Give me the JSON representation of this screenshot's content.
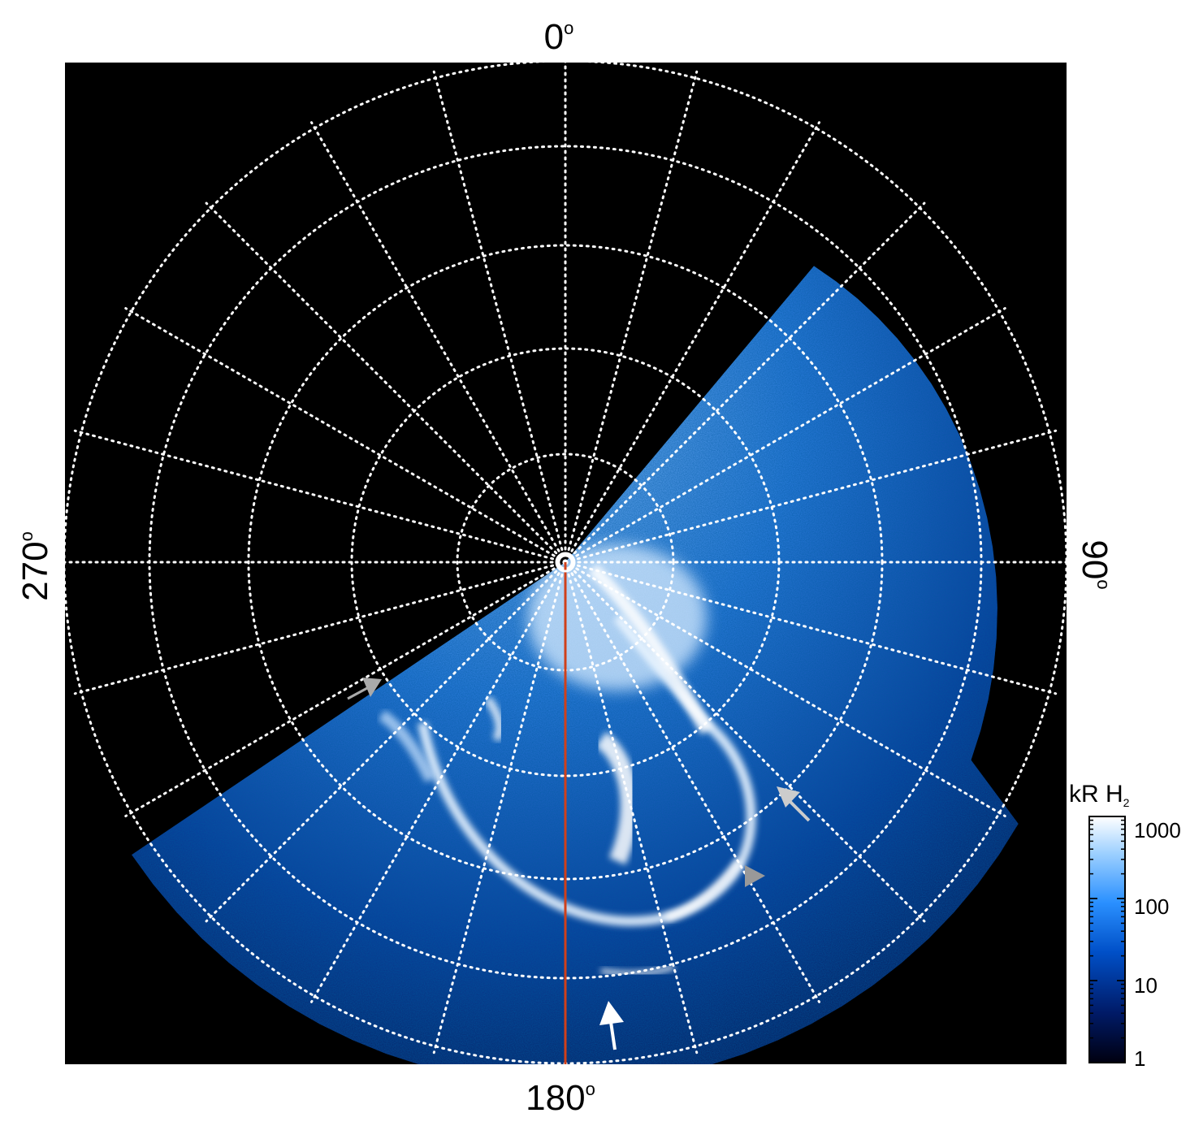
{
  "compass": {
    "top": "0",
    "right": "90",
    "bottom": "180",
    "left": "270",
    "degree_symbol": "o"
  },
  "colorbar": {
    "unit_main": "kR H",
    "unit_sub": "2",
    "ticks": [
      "1000",
      "100",
      "10",
      "1"
    ],
    "scale": "log",
    "range": [
      1,
      1000
    ],
    "colors": [
      "#000010",
      "#001a66",
      "#0050c8",
      "#2a90ff",
      "#9dd0ff",
      "#ffffff"
    ]
  },
  "grid": {
    "color": "#ffffff",
    "style": "dotted"
  },
  "meridian_line": {
    "color": "#d0401a"
  },
  "arrows": [
    {
      "name": "gray-arrow-left",
      "color": "#aaaaaa"
    },
    {
      "name": "gray-arrow-right-upper",
      "color": "#cccccc"
    },
    {
      "name": "gray-arrowhead-right-lower",
      "color": "#999999"
    },
    {
      "name": "white-arrow-bottom",
      "color": "#ffffff"
    }
  ]
}
